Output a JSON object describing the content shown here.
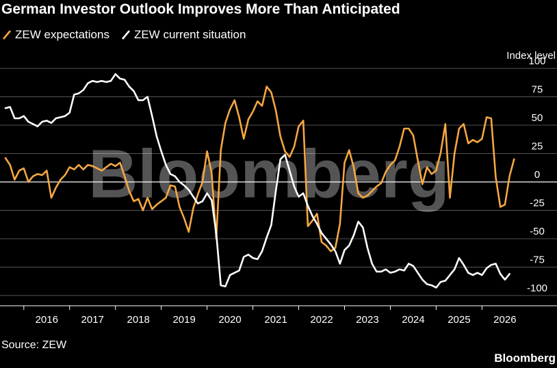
{
  "title": "German Investor Outlook Improves More Than Anticipated",
  "source": "Source: ZEW",
  "brand": "Bloomberg",
  "watermark": "Bloomberg",
  "colors": {
    "expectations": "#f5a742",
    "current": "#ffffff",
    "background": "#000000",
    "grid": "#555555"
  },
  "chart_data": {
    "type": "line",
    "title": "German Investor Outlook Improves More Than Anticipated",
    "ylabel": "Index level",
    "ylim": [
      -100,
      100
    ],
    "yticks": [
      100,
      75,
      50,
      25,
      0,
      -25,
      -50,
      -75,
      -100
    ],
    "xlim": [
      2015.6,
      2026.95
    ],
    "xticks": [
      "2016",
      "2017",
      "2018",
      "2019",
      "2020",
      "2021",
      "2022",
      "2023",
      "2024",
      "2025",
      "2026"
    ],
    "grid": true,
    "legend_position": "top-left",
    "series": [
      {
        "name": "ZEW expectations",
        "color": "#f5a742",
        "points": [
          [
            2015.6,
            21
          ],
          [
            2015.7,
            15
          ],
          [
            2015.8,
            2
          ],
          [
            2015.9,
            10
          ],
          [
            2016.0,
            12
          ],
          [
            2016.1,
            0
          ],
          [
            2016.2,
            5
          ],
          [
            2016.3,
            7
          ],
          [
            2016.4,
            6
          ],
          [
            2016.5,
            10
          ],
          [
            2016.6,
            -14
          ],
          [
            2016.7,
            -5
          ],
          [
            2016.8,
            2
          ],
          [
            2016.9,
            6
          ],
          [
            2017.0,
            13
          ],
          [
            2017.1,
            11
          ],
          [
            2017.2,
            15
          ],
          [
            2017.3,
            11
          ],
          [
            2017.4,
            15
          ],
          [
            2017.5,
            14
          ],
          [
            2017.6,
            12
          ],
          [
            2017.7,
            10
          ],
          [
            2017.8,
            13
          ],
          [
            2017.9,
            16
          ],
          [
            2018.0,
            14
          ],
          [
            2018.1,
            17
          ],
          [
            2018.2,
            5
          ],
          [
            2018.3,
            -8
          ],
          [
            2018.4,
            -17
          ],
          [
            2018.5,
            -15
          ],
          [
            2018.6,
            -25
          ],
          [
            2018.7,
            -14
          ],
          [
            2018.8,
            -24
          ],
          [
            2018.9,
            -20
          ],
          [
            2019.0,
            -17
          ],
          [
            2019.1,
            -14
          ],
          [
            2019.2,
            -3
          ],
          [
            2019.3,
            -4
          ],
          [
            2019.4,
            -22
          ],
          [
            2019.5,
            -32
          ],
          [
            2019.6,
            -44
          ],
          [
            2019.7,
            -23
          ],
          [
            2019.8,
            -11
          ],
          [
            2019.9,
            0
          ],
          [
            2020.0,
            27
          ],
          [
            2020.1,
            8
          ],
          [
            2020.2,
            -50
          ],
          [
            2020.3,
            28
          ],
          [
            2020.4,
            52
          ],
          [
            2020.5,
            64
          ],
          [
            2020.6,
            72
          ],
          [
            2020.7,
            57
          ],
          [
            2020.8,
            38
          ],
          [
            2020.9,
            55
          ],
          [
            2021.0,
            62
          ],
          [
            2021.1,
            71
          ],
          [
            2021.2,
            67
          ],
          [
            2021.3,
            84
          ],
          [
            2021.4,
            79
          ],
          [
            2021.5,
            63
          ],
          [
            2021.6,
            40
          ],
          [
            2021.7,
            27
          ],
          [
            2021.8,
            22
          ],
          [
            2021.9,
            31
          ],
          [
            2022.0,
            49
          ],
          [
            2022.1,
            54
          ],
          [
            2022.2,
            -39
          ],
          [
            2022.3,
            -34
          ],
          [
            2022.4,
            -28
          ],
          [
            2022.5,
            -53
          ],
          [
            2022.6,
            -56
          ],
          [
            2022.7,
            -61
          ],
          [
            2022.8,
            -58
          ],
          [
            2022.9,
            -37
          ],
          [
            2023.0,
            17
          ],
          [
            2023.1,
            28
          ],
          [
            2023.2,
            13
          ],
          [
            2023.3,
            -10
          ],
          [
            2023.4,
            -14
          ],
          [
            2023.5,
            -12
          ],
          [
            2023.6,
            -8
          ],
          [
            2023.7,
            -4
          ],
          [
            2023.8,
            -1
          ],
          [
            2023.9,
            9
          ],
          [
            2024.0,
            15
          ],
          [
            2024.1,
            19
          ],
          [
            2024.2,
            31
          ],
          [
            2024.3,
            47
          ],
          [
            2024.4,
            47
          ],
          [
            2024.5,
            41
          ],
          [
            2024.6,
            19
          ],
          [
            2024.7,
            -2
          ],
          [
            2024.8,
            13
          ],
          [
            2024.9,
            7
          ],
          [
            2025.0,
            10
          ],
          [
            2025.1,
            26
          ],
          [
            2025.2,
            51
          ],
          [
            2025.3,
            -14
          ],
          [
            2025.4,
            25
          ],
          [
            2025.5,
            47
          ],
          [
            2025.6,
            51
          ],
          [
            2025.7,
            34
          ],
          [
            2025.8,
            37
          ],
          [
            2025.9,
            35
          ],
          [
            2026.0,
            38
          ],
          [
            2026.1,
            57
          ],
          [
            2026.2,
            56
          ],
          [
            2026.3,
            4
          ],
          [
            2026.4,
            -22
          ],
          [
            2026.5,
            -20
          ],
          [
            2026.6,
            5
          ],
          [
            2026.7,
            20
          ]
        ]
      },
      {
        "name": "ZEW current situation",
        "color": "#ffffff",
        "points": [
          [
            2015.6,
            65
          ],
          [
            2015.7,
            66
          ],
          [
            2015.8,
            56
          ],
          [
            2015.9,
            56
          ],
          [
            2016.0,
            58
          ],
          [
            2016.1,
            53
          ],
          [
            2016.2,
            51
          ],
          [
            2016.3,
            49
          ],
          [
            2016.4,
            53
          ],
          [
            2016.5,
            54
          ],
          [
            2016.6,
            52
          ],
          [
            2016.7,
            56
          ],
          [
            2016.8,
            57
          ],
          [
            2016.9,
            58
          ],
          [
            2017.0,
            61
          ],
          [
            2017.1,
            77
          ],
          [
            2017.2,
            78
          ],
          [
            2017.3,
            81
          ],
          [
            2017.4,
            87
          ],
          [
            2017.5,
            89
          ],
          [
            2017.6,
            88
          ],
          [
            2017.7,
            89
          ],
          [
            2017.8,
            88
          ],
          [
            2017.9,
            89
          ],
          [
            2018.0,
            95
          ],
          [
            2018.1,
            91
          ],
          [
            2018.2,
            90
          ],
          [
            2018.3,
            84
          ],
          [
            2018.4,
            80
          ],
          [
            2018.5,
            72
          ],
          [
            2018.6,
            72
          ],
          [
            2018.7,
            75
          ],
          [
            2018.8,
            58
          ],
          [
            2018.9,
            40
          ],
          [
            2019.0,
            27
          ],
          [
            2019.1,
            15
          ],
          [
            2019.2,
            7
          ],
          [
            2019.3,
            5
          ],
          [
            2019.4,
            0
          ],
          [
            2019.5,
            -3
          ],
          [
            2019.6,
            -7
          ],
          [
            2019.7,
            -13
          ],
          [
            2019.8,
            -19
          ],
          [
            2019.9,
            -17
          ],
          [
            2020.0,
            -10
          ],
          [
            2020.1,
            -16
          ],
          [
            2020.2,
            -45
          ],
          [
            2020.3,
            -91
          ],
          [
            2020.4,
            -92
          ],
          [
            2020.5,
            -82
          ],
          [
            2020.6,
            -80
          ],
          [
            2020.7,
            -78
          ],
          [
            2020.8,
            -66
          ],
          [
            2020.9,
            -64
          ],
          [
            2021.0,
            -67
          ],
          [
            2021.1,
            -68
          ],
          [
            2021.2,
            -61
          ],
          [
            2021.3,
            -49
          ],
          [
            2021.4,
            -38
          ],
          [
            2021.5,
            -8
          ],
          [
            2021.6,
            20
          ],
          [
            2021.7,
            24
          ],
          [
            2021.8,
            10
          ],
          [
            2021.9,
            -4
          ],
          [
            2022.0,
            -13
          ],
          [
            2022.1,
            -10
          ],
          [
            2022.2,
            -21
          ],
          [
            2022.3,
            -30
          ],
          [
            2022.4,
            -37
          ],
          [
            2022.5,
            -45
          ],
          [
            2022.6,
            -50
          ],
          [
            2022.7,
            -55
          ],
          [
            2022.8,
            -61
          ],
          [
            2022.9,
            -72
          ],
          [
            2023.0,
            -60
          ],
          [
            2023.1,
            -56
          ],
          [
            2023.2,
            -47
          ],
          [
            2023.3,
            -35
          ],
          [
            2023.4,
            -40
          ],
          [
            2023.5,
            -58
          ],
          [
            2023.6,
            -72
          ],
          [
            2023.7,
            -79
          ],
          [
            2023.8,
            -79
          ],
          [
            2023.9,
            -77
          ],
          [
            2024.0,
            -80
          ],
          [
            2024.1,
            -79
          ],
          [
            2024.2,
            -77
          ],
          [
            2024.3,
            -78
          ],
          [
            2024.4,
            -72
          ],
          [
            2024.5,
            -74
          ],
          [
            2024.6,
            -80
          ],
          [
            2024.7,
            -86
          ],
          [
            2024.8,
            -90
          ],
          [
            2024.9,
            -91
          ],
          [
            2025.0,
            -93
          ],
          [
            2025.1,
            -88
          ],
          [
            2025.2,
            -87
          ],
          [
            2025.3,
            -82
          ],
          [
            2025.4,
            -77
          ],
          [
            2025.5,
            -67
          ],
          [
            2025.6,
            -73
          ],
          [
            2025.7,
            -80
          ],
          [
            2025.8,
            -82
          ],
          [
            2025.9,
            -80
          ],
          [
            2026.0,
            -82
          ],
          [
            2026.1,
            -76
          ],
          [
            2026.2,
            -73
          ],
          [
            2026.3,
            -72
          ],
          [
            2026.4,
            -81
          ],
          [
            2026.5,
            -86
          ],
          [
            2026.6,
            -81
          ]
        ]
      }
    ]
  }
}
